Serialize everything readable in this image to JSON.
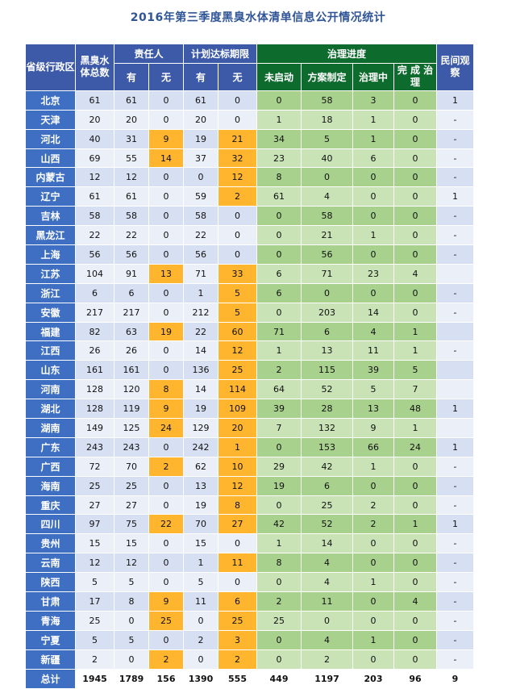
{
  "title": "2016年第三季度黑臭水体清单信息公开情况统计",
  "headers": {
    "province": "省级行政区",
    "total_bodies": "黑臭水体总数",
    "responsible": "责任人",
    "deadline": "计划达标期限",
    "progress": "治理进度",
    "civil": "民间观察",
    "has": "有",
    "none": "无",
    "not_started": "未启动",
    "plan_made": "方案制定",
    "in_progress": "治理中",
    "completed": "完 成 治理"
  },
  "rows": [
    {
      "p": "北京",
      "total": "61",
      "rh": "61",
      "rn": "0",
      "dh": "61",
      "dn": "0",
      "ns": "0",
      "pm": "58",
      "ip": "3",
      "cp": "0",
      "cv": "1"
    },
    {
      "p": "天津",
      "total": "20",
      "rh": "20",
      "rn": "0",
      "dh": "20",
      "dn": "0",
      "ns": "1",
      "pm": "18",
      "ip": "1",
      "cp": "0",
      "cv": "-"
    },
    {
      "p": "河北",
      "total": "40",
      "rh": "31",
      "rn": "9",
      "dh": "19",
      "dn": "21",
      "ns": "34",
      "pm": "5",
      "ip": "1",
      "cp": "0",
      "cv": "-"
    },
    {
      "p": "山西",
      "total": "69",
      "rh": "55",
      "rn": "14",
      "dh": "37",
      "dn": "32",
      "ns": "23",
      "pm": "40",
      "ip": "6",
      "cp": "0",
      "cv": "-"
    },
    {
      "p": "内蒙古",
      "total": "12",
      "rh": "12",
      "rn": "0",
      "dh": "0",
      "dn": "12",
      "ns": "8",
      "pm": "0",
      "ip": "0",
      "cp": "0",
      "cv": "-"
    },
    {
      "p": "辽宁",
      "total": "61",
      "rh": "61",
      "rn": "0",
      "dh": "59",
      "dn": "2",
      "ns": "61",
      "pm": "4",
      "ip": "0",
      "cp": "0",
      "cv": "1"
    },
    {
      "p": "吉林",
      "total": "58",
      "rh": "58",
      "rn": "0",
      "dh": "58",
      "dn": "0",
      "ns": "0",
      "pm": "58",
      "ip": "0",
      "cp": "0",
      "cv": "-"
    },
    {
      "p": "黑龙江",
      "total": "22",
      "rh": "22",
      "rn": "0",
      "dh": "22",
      "dn": "0",
      "ns": "0",
      "pm": "21",
      "ip": "1",
      "cp": "0",
      "cv": "-"
    },
    {
      "p": "上海",
      "total": "56",
      "rh": "56",
      "rn": "0",
      "dh": "56",
      "dn": "0",
      "ns": "0",
      "pm": "56",
      "ip": "0",
      "cp": "0",
      "cv": "-"
    },
    {
      "p": "江苏",
      "total": "104",
      "rh": "91",
      "rn": "13",
      "dh": "71",
      "dn": "33",
      "ns": "6",
      "pm": "71",
      "ip": "23",
      "cp": "4",
      "cv": ""
    },
    {
      "p": "浙江",
      "total": "6",
      "rh": "6",
      "rn": "0",
      "dh": "1",
      "dn": "5",
      "ns": "6",
      "pm": "0",
      "ip": "0",
      "cp": "0",
      "cv": "-"
    },
    {
      "p": "安徽",
      "total": "217",
      "rh": "217",
      "rn": "0",
      "dh": "212",
      "dn": "5",
      "ns": "0",
      "pm": "203",
      "ip": "14",
      "cp": "0",
      "cv": "-"
    },
    {
      "p": "福建",
      "total": "82",
      "rh": "63",
      "rn": "19",
      "dh": "22",
      "dn": "60",
      "ns": "71",
      "pm": "6",
      "ip": "4",
      "cp": "1",
      "cv": ""
    },
    {
      "p": "江西",
      "total": "26",
      "rh": "26",
      "rn": "0",
      "dh": "14",
      "dn": "12",
      "ns": "1",
      "pm": "13",
      "ip": "11",
      "cp": "1",
      "cv": "-"
    },
    {
      "p": "山东",
      "total": "161",
      "rh": "161",
      "rn": "0",
      "dh": "136",
      "dn": "25",
      "ns": "2",
      "pm": "115",
      "ip": "39",
      "cp": "5",
      "cv": ""
    },
    {
      "p": "河南",
      "total": "128",
      "rh": "120",
      "rn": "8",
      "dh": "14",
      "dn": "114",
      "ns": "64",
      "pm": "52",
      "ip": "5",
      "cp": "7",
      "cv": ""
    },
    {
      "p": "湖北",
      "total": "128",
      "rh": "119",
      "rn": "9",
      "dh": "19",
      "dn": "109",
      "ns": "39",
      "pm": "28",
      "ip": "13",
      "cp": "48",
      "cv": "1"
    },
    {
      "p": "湖南",
      "total": "149",
      "rh": "125",
      "rn": "24",
      "dh": "129",
      "dn": "20",
      "ns": "7",
      "pm": "132",
      "ip": "9",
      "cp": "1",
      "cv": ""
    },
    {
      "p": "广东",
      "total": "243",
      "rh": "243",
      "rn": "0",
      "dh": "242",
      "dn": "1",
      "ns": "0",
      "pm": "153",
      "ip": "66",
      "cp": "24",
      "cv": "1"
    },
    {
      "p": "广西",
      "total": "72",
      "rh": "70",
      "rn": "2",
      "dh": "62",
      "dn": "10",
      "ns": "29",
      "pm": "42",
      "ip": "1",
      "cp": "0",
      "cv": "-"
    },
    {
      "p": "海南",
      "total": "25",
      "rh": "25",
      "rn": "0",
      "dh": "13",
      "dn": "12",
      "ns": "19",
      "pm": "6",
      "ip": "0",
      "cp": "0",
      "cv": "-"
    },
    {
      "p": "重庆",
      "total": "27",
      "rh": "27",
      "rn": "0",
      "dh": "19",
      "dn": "8",
      "ns": "0",
      "pm": "25",
      "ip": "2",
      "cp": "0",
      "cv": "-"
    },
    {
      "p": "四川",
      "total": "97",
      "rh": "75",
      "rn": "22",
      "dh": "70",
      "dn": "27",
      "ns": "42",
      "pm": "52",
      "ip": "2",
      "cp": "1",
      "cv": "1"
    },
    {
      "p": "贵州",
      "total": "15",
      "rh": "15",
      "rn": "0",
      "dh": "15",
      "dn": "0",
      "ns": "1",
      "pm": "14",
      "ip": "0",
      "cp": "0",
      "cv": "-"
    },
    {
      "p": "云南",
      "total": "12",
      "rh": "12",
      "rn": "0",
      "dh": "1",
      "dn": "11",
      "ns": "8",
      "pm": "4",
      "ip": "0",
      "cp": "0",
      "cv": "-"
    },
    {
      "p": "陕西",
      "total": "5",
      "rh": "5",
      "rn": "0",
      "dh": "5",
      "dn": "0",
      "ns": "0",
      "pm": "4",
      "ip": "1",
      "cp": "0",
      "cv": "-"
    },
    {
      "p": "甘肃",
      "total": "17",
      "rh": "8",
      "rn": "9",
      "dh": "11",
      "dn": "6",
      "ns": "2",
      "pm": "11",
      "ip": "0",
      "cp": "4",
      "cv": "-"
    },
    {
      "p": "青海",
      "total": "25",
      "rh": "0",
      "rn": "25",
      "dh": "0",
      "dn": "25",
      "ns": "25",
      "pm": "0",
      "ip": "0",
      "cp": "0",
      "cv": "-"
    },
    {
      "p": "宁夏",
      "total": "5",
      "rh": "5",
      "rn": "0",
      "dh": "2",
      "dn": "3",
      "ns": "0",
      "pm": "4",
      "ip": "1",
      "cp": "0",
      "cv": "-"
    },
    {
      "p": "新疆",
      "total": "2",
      "rh": "0",
      "rn": "2",
      "dh": "0",
      "dn": "2",
      "ns": "0",
      "pm": "2",
      "ip": "0",
      "cp": "0",
      "cv": "-"
    }
  ],
  "totals": {
    "p": "总计",
    "total": "1945",
    "rh": "1789",
    "rn": "156",
    "dh": "1390",
    "dn": "555",
    "ns": "449",
    "pm": "1197",
    "ip": "203",
    "cp": "96",
    "cv": "9"
  },
  "colors": {
    "header_blue": "#3d5aa8",
    "header_green": "#0e6b2e",
    "province": "#3f6fc2",
    "highlight": "#ffb52e"
  }
}
